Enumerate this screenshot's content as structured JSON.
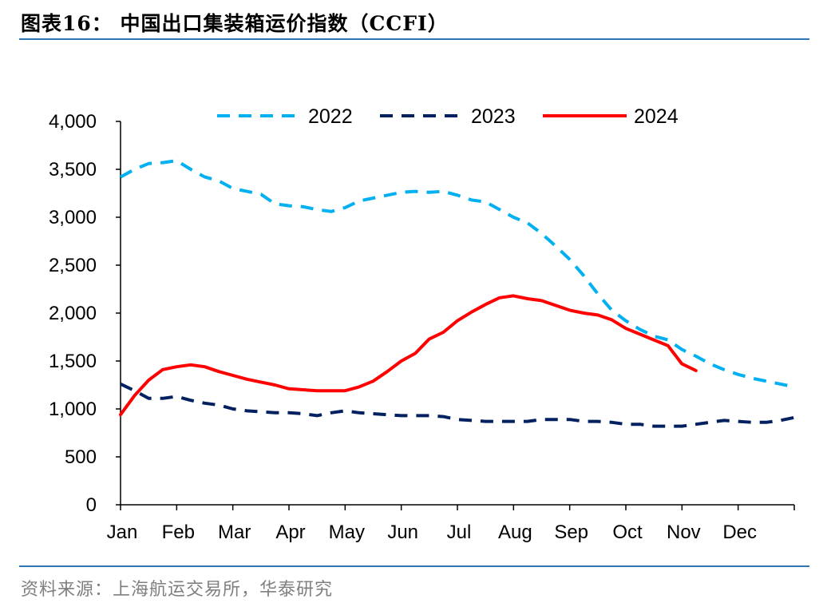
{
  "header": {
    "title": "图表16： 中国出口集装箱运价指数（CCFI）"
  },
  "footer": {
    "source": "资料来源：上海航运交易所，华泰研究"
  },
  "chart_data": {
    "type": "line",
    "title": "",
    "xlabel": "",
    "ylabel": "",
    "ylim": [
      0,
      4000
    ],
    "xlim": [
      0,
      12
    ],
    "y_ticks": [
      0,
      500,
      1000,
      1500,
      2000,
      2500,
      3000,
      3500,
      4000
    ],
    "y_tick_labels": [
      "0",
      "500",
      "1,000",
      "1,500",
      "2,000",
      "2,500",
      "3,000",
      "3,500",
      "4,000"
    ],
    "x_tick_labels": [
      "Jan",
      "Feb",
      "Mar",
      "Apr",
      "May",
      "Jun",
      "Jul",
      "Aug",
      "Sep",
      "Oct",
      "Nov",
      "Dec"
    ],
    "grid": false,
    "legend_position": "top",
    "series": [
      {
        "name": "2022",
        "color": "#00b0f0",
        "dash": "dashed",
        "x": [
          0,
          0.25,
          0.5,
          0.75,
          1.0,
          1.25,
          1.5,
          1.75,
          2.0,
          2.25,
          2.5,
          2.75,
          3.0,
          3.25,
          3.5,
          3.75,
          4.0,
          4.25,
          4.5,
          4.75,
          5.0,
          5.25,
          5.5,
          5.75,
          6.0,
          6.25,
          6.5,
          6.75,
          7.0,
          7.25,
          7.5,
          7.75,
          8.0,
          8.25,
          8.5,
          8.75,
          9.0,
          9.25,
          9.5,
          9.75,
          10.0,
          10.25,
          10.5,
          10.75,
          11.0,
          11.25,
          11.5,
          11.75,
          12.0
        ],
        "values": [
          3420,
          3500,
          3560,
          3570,
          3590,
          3500,
          3420,
          3380,
          3300,
          3270,
          3240,
          3140,
          3120,
          3110,
          3080,
          3060,
          3100,
          3170,
          3200,
          3230,
          3260,
          3270,
          3260,
          3270,
          3230,
          3180,
          3160,
          3080,
          3000,
          2940,
          2830,
          2700,
          2560,
          2390,
          2200,
          2030,
          1920,
          1830,
          1760,
          1720,
          1620,
          1550,
          1470,
          1410,
          1360,
          1320,
          1290,
          1260,
          1230
        ]
      },
      {
        "name": "2023",
        "color": "#002060",
        "dash": "dashed",
        "x": [
          0,
          0.25,
          0.5,
          0.75,
          1.0,
          1.25,
          1.5,
          1.75,
          2.0,
          2.25,
          2.5,
          2.75,
          3.0,
          3.25,
          3.5,
          3.75,
          4.0,
          4.25,
          4.5,
          4.75,
          5.0,
          5.25,
          5.5,
          5.75,
          6.0,
          6.25,
          6.5,
          6.75,
          7.0,
          7.25,
          7.5,
          7.75,
          8.0,
          8.25,
          8.5,
          8.75,
          9.0,
          9.25,
          9.5,
          9.75,
          10.0,
          10.25,
          10.5,
          10.75,
          11.0,
          11.25,
          11.5,
          11.75,
          12.0
        ],
        "values": [
          1260,
          1190,
          1110,
          1110,
          1130,
          1090,
          1060,
          1040,
          1000,
          980,
          970,
          960,
          960,
          950,
          930,
          960,
          980,
          960,
          950,
          940,
          930,
          930,
          930,
          920,
          890,
          880,
          870,
          870,
          870,
          870,
          890,
          890,
          890,
          870,
          870,
          860,
          840,
          840,
          820,
          820,
          820,
          840,
          860,
          880,
          870,
          860,
          860,
          880,
          910
        ]
      },
      {
        "name": "2024",
        "color": "#ff0000",
        "dash": "solid",
        "x": [
          0,
          0.25,
          0.5,
          0.75,
          1.0,
          1.25,
          1.5,
          1.75,
          2.0,
          2.25,
          2.5,
          2.75,
          3.0,
          3.25,
          3.5,
          3.75,
          4.0,
          4.25,
          4.5,
          4.75,
          5.0,
          5.25,
          5.5,
          5.75,
          6.0,
          6.25,
          6.5,
          6.75,
          7.0,
          7.25,
          7.5,
          7.75,
          8.0,
          8.25,
          8.5,
          8.75,
          9.0,
          9.25,
          9.5,
          9.75,
          10.0,
          10.25
        ],
        "values": [
          940,
          1140,
          1300,
          1410,
          1440,
          1460,
          1440,
          1390,
          1350,
          1310,
          1280,
          1250,
          1210,
          1200,
          1190,
          1190,
          1190,
          1230,
          1290,
          1390,
          1500,
          1580,
          1730,
          1800,
          1920,
          2010,
          2090,
          2160,
          2180,
          2150,
          2130,
          2080,
          2030,
          2000,
          1980,
          1930,
          1840,
          1780,
          1720,
          1660,
          1470,
          1400
        ]
      }
    ]
  }
}
